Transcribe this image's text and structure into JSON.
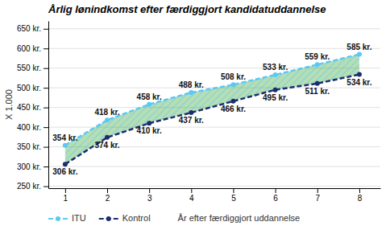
{
  "chart_data": {
    "type": "line",
    "title": "Årlig lønindkomst efter færdiggjort kandidatuddannelse",
    "xlabel": "År efter færdiggjort uddannelse",
    "ylabel": "X 1.000",
    "x": [
      1,
      2,
      3,
      4,
      5,
      6,
      7,
      8
    ],
    "series": [
      {
        "name": "ITU",
        "color": "#5bc8f5",
        "marker": "circle",
        "line_style": "dashed",
        "values": [
          354,
          418,
          458,
          488,
          508,
          533,
          559,
          585
        ],
        "value_labels": [
          "354 kr.",
          "418 kr.",
          "458 kr.",
          "488 kr.",
          "508 kr.",
          "533 kr.",
          "559 kr.",
          "585 kr."
        ]
      },
      {
        "name": "Kontrol",
        "color": "#1c2d6e",
        "marker": "circle",
        "line_style": "dashed",
        "values": [
          306,
          374,
          410,
          437,
          466,
          495,
          511,
          534
        ],
        "value_labels": [
          "306 kr.",
          "374 kr.",
          "410 kr.",
          "437 kr.",
          "466 kr.",
          "495 kr.",
          "511 kr.",
          "534 kr."
        ]
      }
    ],
    "xlim": [
      0.6,
      8.5
    ],
    "xticks": [
      1,
      2,
      3,
      4,
      5,
      6,
      7,
      8
    ],
    "ylim": [
      245,
      670
    ],
    "yticks": [
      {
        "value": 250,
        "label": "250 kr."
      },
      {
        "value": 300,
        "label": "300 kr."
      },
      {
        "value": 350,
        "label": "350 kr."
      },
      {
        "value": 400,
        "label": "400 kr."
      },
      {
        "value": 450,
        "label": "450 kr."
      },
      {
        "value": 500,
        "label": "500 kr."
      },
      {
        "value": 550,
        "label": "550 kr."
      },
      {
        "value": 600,
        "label": "600 kr."
      },
      {
        "value": 650,
        "label": "650 kr."
      }
    ],
    "grid": true,
    "data_labels": true,
    "legend": "bottom"
  }
}
